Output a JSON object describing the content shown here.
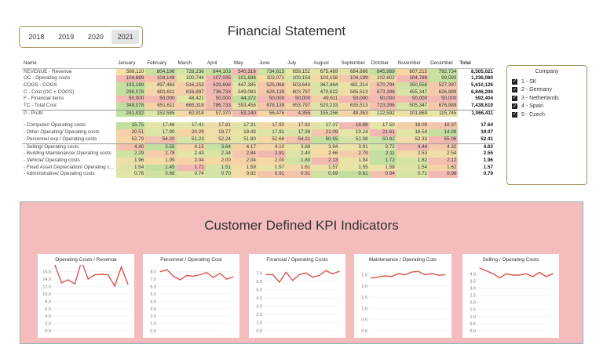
{
  "title": "Financial Statement",
  "years": [
    "2018",
    "2019",
    "2020",
    "2021"
  ],
  "selected_year": "2021",
  "table": {
    "columns": [
      "Name",
      "January",
      "February",
      "March",
      "April",
      "May",
      "June",
      "July",
      "August",
      "September",
      "October",
      "November",
      "December",
      "Total"
    ],
    "rows": [
      {
        "name": "REVENUE - Revenue",
        "values": [
          "589,110",
          "804,196",
          "728,236",
          "844,103",
          "540,316",
          "734,615",
          "658,152",
          "675,489",
          "684,866",
          "845,989",
          "607,215",
          "792,734"
        ],
        "total": "8,505,021",
        "colors": [
          "#f4e3a9",
          "#c8e0a4",
          "#d4e3a7",
          "#c3df9f",
          "#f2b9b3",
          "#cfe2a4",
          "#e9e6a9",
          "#e3e5a7",
          "#e0e5a7",
          "#c2df9f",
          "#f5d7a6",
          "#c8e0a2"
        ]
      },
      {
        "name": "OC - Operating costs",
        "values": [
          "104,889",
          "104,148",
          "100,744",
          "107,035",
          "101,698",
          "103,071",
          "100,154",
          "103,158",
          "104,199",
          "102,602",
          "104,789",
          "99,593"
        ],
        "total": "1,236,080",
        "colors": [
          "#f2b9b3",
          "#f3c2af",
          "#e4e5a7",
          "#f1b5b1",
          "#cfe2a4",
          "#f5d9a6",
          "#d9e4a7",
          "#f5d8a6",
          "#f3c6ae",
          "#ecdba9",
          "#f2bab1",
          "#c6e0a2"
        ]
      },
      {
        "name": "COGS - COGS",
        "values": [
          "193,189",
          "497,463",
          "516,153",
          "629,698",
          "447,385",
          "525,068",
          "503,643",
          "367,464",
          "481,314",
          "570,794",
          "350,558",
          "527,397"
        ],
        "total": "5,610,126",
        "colors": [
          "#c3df9f",
          "#eddda8",
          "#f5cfa9",
          "#f2b9b3",
          "#e5e5a7",
          "#f4c8ac",
          "#f5d6a7",
          "#d6e4a7",
          "#e9e3a8",
          "#f3c4ae",
          "#d1e2a5",
          "#f4c8ac"
        ]
      },
      {
        "name": "C - Cost (OC + COGS)",
        "values": [
          "298,078",
          "601,611",
          "616,897",
          "736,733",
          "549,083",
          "628,139",
          "603,797",
          "470,622",
          "585,513",
          "673,396",
          "455,347",
          "626,989"
        ],
        "total": "6,846,206",
        "colors": [
          "#c3df9f",
          "#f5d4a8",
          "#f4cfa9",
          "#f2b9b3",
          "#e9e3a8",
          "#f4c8ac",
          "#f5d3a8",
          "#dde4a7",
          "#f0dca8",
          "#f3c1ae",
          "#dbe4a7",
          "#f4c9ac"
        ]
      },
      {
        "name": "F - Financial items",
        "values": [
          "50,000",
          "50,000",
          "48,421",
          "50,000",
          "44,372",
          "50,000",
          "50,000",
          "49,611",
          "50,000",
          "50,000",
          "50,000",
          "50,000"
        ],
        "total": "592,404",
        "colors": [
          "#f2b9b3",
          "#f2b9b3",
          "#e3e5a7",
          "#f2b9b3",
          "#c3df9f",
          "#f2b9b3",
          "#f2b9b3",
          "#f5cfa9",
          "#f2b9b3",
          "#f2b9b3",
          "#f2b9b3",
          "#f2b9b3"
        ]
      },
      {
        "name": "TC - Total Cost",
        "values": [
          "348,078",
          "651,611",
          "665,318",
          "786,733",
          "593,456",
          "678,139",
          "653,797",
          "520,233",
          "635,513",
          "723,396",
          "505,347",
          "676,989"
        ],
        "total": "7,438,610",
        "colors": [
          "#c3df9f",
          "#f5d4a8",
          "#f4cfa9",
          "#f2b9b3",
          "#ebe2a8",
          "#f4c8ac",
          "#f5d3a8",
          "#dde4a7",
          "#f2d9a8",
          "#f3c1ae",
          "#dbe4a7",
          "#f4c9ac"
        ]
      },
      {
        "name": "P - Profit",
        "values": [
          "241,032",
          "152,585",
          "62,918",
          "57,370",
          "-53,140",
          "56,476",
          "4,355",
          "155,256",
          "49,353",
          "122,592",
          "101,869",
          "115,745"
        ],
        "total": "1,066,411",
        "colors": [
          "#c3df9f",
          "#dfe4a7",
          "#f5d8a6",
          "#f5d5a7",
          "#f2b9b3",
          "#f5d5a7",
          "#f4c3ad",
          "#dee4a7",
          "#f5d3a8",
          "#e7e4a8",
          "#ece0a8",
          "#e8e3a8"
        ]
      },
      {
        "name": "- Computer/ Operating costs",
        "values": [
          "15.75",
          "17.46",
          "17.41",
          "17.81",
          "17.31",
          "17.92",
          "17.82",
          "17.37",
          "18.88",
          "17.50",
          "18.09",
          "18.37"
        ],
        "total": "17.64",
        "colors": [
          "#c3df9f",
          "#e3e5a7",
          "#e1e5a7",
          "#f0dca8",
          "#dee4a7",
          "#f3d8a8",
          "#f1dba8",
          "#dfe5a7",
          "#f2b9b3",
          "#e4e5a7",
          "#f4cfa9",
          "#f3c5ad"
        ]
      },
      {
        "name": "- Other Operating/ Operating costs",
        "values": [
          "20.51",
          "17.90",
          "20.29",
          "19.77",
          "19.43",
          "17.91",
          "17.36",
          "21.09",
          "19.24",
          "21.61",
          "18.54",
          "14.99"
        ],
        "total": "19.07",
        "colors": [
          "#f5cfa9",
          "#dde4a7",
          "#f5d4a8",
          "#eddda8",
          "#e8e3a8",
          "#dde4a7",
          "#d7e4a7",
          "#f3c5ad",
          "#e5e5a7",
          "#f2b9b3",
          "#e3e5a7",
          "#c3df9f"
        ]
      },
      {
        "name": "- Personnel exp./ Operating costs",
        "values": [
          "52.79",
          "54.20",
          "51.23",
          "52.24",
          "51.80",
          "52.68",
          "54.21",
          "50.55",
          "51.08",
          "50.82",
          "52.33",
          "55.06"
        ],
        "total": "52.41",
        "colors": [
          "#f5d6a7",
          "#f3c2af",
          "#d9e4a7",
          "#eddda8",
          "#e3e5a7",
          "#f5d8a6",
          "#f3c2af",
          "#c3df9f",
          "#d4e3a7",
          "#cde2a5",
          "#efdca8",
          "#f2b9b3"
        ]
      },
      {
        "name": "- Selling/ Operating costs",
        "values": [
          "4.40",
          "3.55",
          "4.15",
          "3.64",
          "4.17",
          "4.10",
          "3.88",
          "3.94",
          "3.91",
          "3.72",
          "4.44",
          "4.32"
        ],
        "total": "4.02",
        "colors": [
          "#f3c1ae",
          "#c3df9f",
          "#f5d4a8",
          "#cbe1a4",
          "#f5d3a8",
          "#f5d8a6",
          "#e7e4a8",
          "#eee0a8",
          "#ebe2a8",
          "#d8e4a7",
          "#f2b9b3",
          "#f4c9ac"
        ]
      },
      {
        "name": "- Building Maintenance/ Operating costs",
        "values": [
          "2.29",
          "2.78",
          "2.43",
          "2.34",
          "2.84",
          "2.91",
          "2.40",
          "2.66",
          "2.79",
          "2.11",
          "2.53",
          "2.54"
        ],
        "total": "2.55",
        "colors": [
          "#d1e2a5",
          "#f4cdaa",
          "#e1e5a7",
          "#d9e4a7",
          "#f3c6ad",
          "#f2b9b3",
          "#dee4a7",
          "#f5d8a6",
          "#f4cbab",
          "#c3df9f",
          "#efdda8",
          "#f0dca8"
        ]
      },
      {
        "name": "- Vehicle/ Operating costs",
        "values": [
          "1.96",
          "1.99",
          "2.04",
          "2.00",
          "2.04",
          "2.00",
          "1.80",
          "2.13",
          "1.94",
          "1.72",
          "1.82",
          "2.12"
        ],
        "total": "1.96",
        "colors": [
          "#ece0a8",
          "#f3dca8",
          "#f5d2a8",
          "#f5d8a6",
          "#f5d2a8",
          "#f5d8a6",
          "#d1e2a5",
          "#f2b9b3",
          "#e9e3a8",
          "#c3df9f",
          "#d5e3a7",
          "#f3bdb0"
        ]
      },
      {
        "name": "- Fixed Asset Depreciation/ Operating c...",
        "values": [
          "1.54",
          "1.45",
          "1.71",
          "1.51",
          "1.59",
          "1.57",
          "1.61",
          "1.57",
          "1.55",
          "1.58",
          "1.54",
          "1.62"
        ],
        "total": "1.57",
        "colors": [
          "#dee4a7",
          "#c3df9f",
          "#f2b9b3",
          "#d5e3a7",
          "#f1dca8",
          "#ebe2a8",
          "#f5d6a7",
          "#ebe2a8",
          "#e4e5a7",
          "#eee0a8",
          "#dee4a7",
          "#f5d3a8"
        ]
      },
      {
        "name": "- Administrative/ Operating costs",
        "values": [
          "0.76",
          "0.68",
          "0.74",
          "0.70",
          "0.82",
          "0.91",
          "0.91",
          "0.69",
          "0.61",
          "0.94",
          "0.71",
          "0.98"
        ],
        "total": "0.79",
        "colors": [
          "#e1e5a7",
          "#cfe2a4",
          "#dce4a7",
          "#d3e3a7",
          "#f1dca8",
          "#f4c5ad",
          "#f4c5ad",
          "#d1e2a5",
          "#c3df9f",
          "#f3c0ae",
          "#d6e4a7",
          "#f2b9b3"
        ]
      }
    ]
  },
  "company_slicer": {
    "title": "Company",
    "items": [
      "1 - SK",
      "2 - Germany",
      "3 - Netherlands",
      "4 - Spain",
      "5 - Czech"
    ]
  },
  "kpi": {
    "title": "Customer Defined KPI Indicators",
    "line_color": "#d9534f"
  },
  "chart_data": [
    {
      "type": "line",
      "title": "Operating Costs / Revenue",
      "x": [
        "January",
        "February",
        "March",
        "April",
        "May",
        "June",
        "July",
        "August",
        "September",
        "October",
        "November",
        "December"
      ],
      "values": [
        17.8,
        13.0,
        13.8,
        12.7,
        18.8,
        14.0,
        15.2,
        15.3,
        15.2,
        12.1,
        17.3,
        12.6
      ],
      "yticks": [
        "16.0",
        "14.0",
        "12.0",
        "10.0",
        "8.0",
        "6.0",
        "4.0",
        "2.0",
        "0.0"
      ],
      "ylim": [
        0,
        17
      ]
    },
    {
      "type": "line",
      "title": "Personnel  / Operating Cost",
      "x": [
        "January",
        "February",
        "March",
        "April",
        "May",
        "June",
        "July",
        "August",
        "September",
        "October",
        "November",
        "December"
      ],
      "values": [
        8.0,
        8.3,
        7.4,
        6.9,
        7.5,
        7.4,
        7.6,
        7.9,
        7.2,
        7.8,
        7.0,
        7.3
      ],
      "yticks": [
        "8.0",
        "7.0",
        "6.0",
        "5.0",
        "4.0",
        "3.0",
        "2.0",
        "1.0",
        "0.0"
      ],
      "ylim": [
        0,
        8.5
      ]
    },
    {
      "type": "line",
      "title": "Financial / Operating Costs",
      "x": [
        "January",
        "February",
        "March",
        "April",
        "May",
        "June",
        "July",
        "August",
        "September",
        "October",
        "November",
        "December"
      ],
      "values": [
        6.8,
        6.8,
        5.9,
        7.1,
        6.1,
        6.8,
        7.0,
        6.5,
        6.7,
        7.3,
        6.9,
        7.2
      ],
      "yticks": [
        "7.0",
        "6.0",
        "5.0",
        "4.0",
        "3.0",
        "2.0",
        "1.0",
        "0.0"
      ],
      "ylim": [
        0,
        7.6
      ]
    },
    {
      "type": "line",
      "title": "Maintenance / Operating Cots",
      "x": [
        "January",
        "February",
        "March",
        "April",
        "May",
        "June",
        "July",
        "August",
        "September",
        "October",
        "November",
        "December"
      ],
      "values": [
        2.35,
        2.4,
        2.45,
        2.42,
        2.55,
        2.5,
        2.62,
        2.65,
        2.5,
        2.55,
        2.48,
        2.5
      ],
      "yticks": [
        "2.5",
        "2.0",
        "1.5",
        "1.0",
        "0.5",
        "0.0"
      ],
      "ylim": [
        0,
        2.8
      ]
    },
    {
      "type": "line",
      "title": "Selling / Operating Costs",
      "x": [
        "January",
        "February",
        "March",
        "April",
        "May",
        "June",
        "July",
        "August",
        "September",
        "October",
        "November",
        "December"
      ],
      "values": [
        4.4,
        4.2,
        4.0,
        3.7,
        4.0,
        3.9,
        3.9,
        4.0,
        3.8,
        4.1,
        3.8,
        4.0
      ],
      "yticks": [
        "4.0",
        "3.5",
        "3.0",
        "2.5",
        "2.0",
        "1.5",
        "1.0",
        "0.5",
        "0.0"
      ],
      "ylim": [
        0,
        4.4
      ]
    }
  ]
}
